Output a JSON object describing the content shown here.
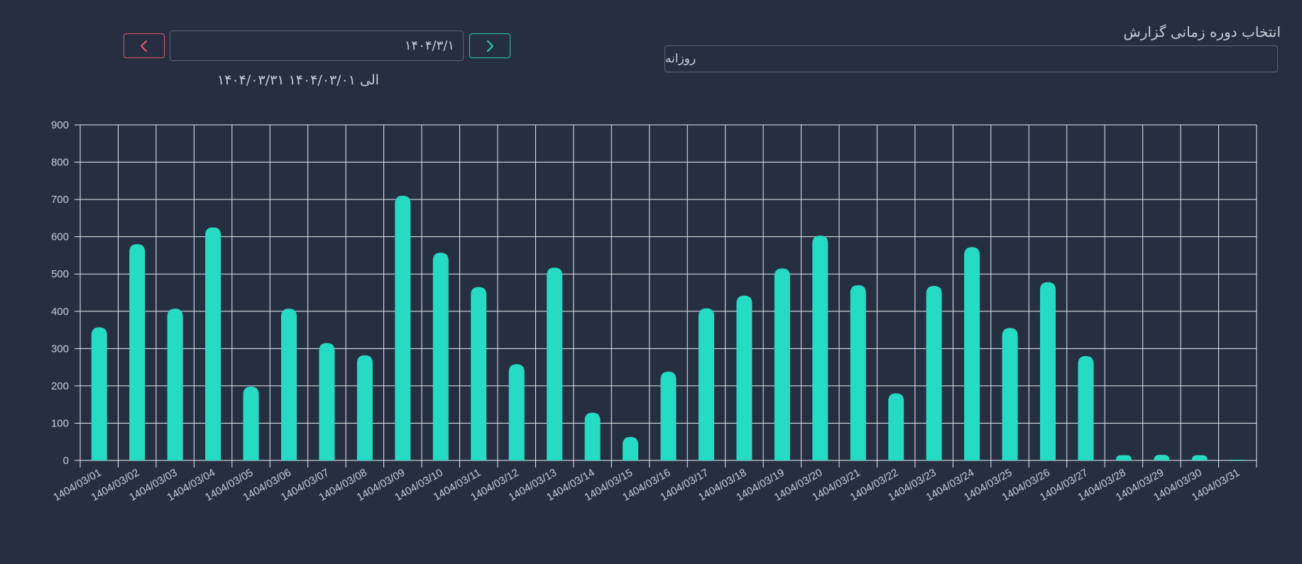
{
  "header": {
    "period_label": "انتخاب دوره زمانی گزارش",
    "period_value": "روزانه",
    "date_value": "۱۴۰۴/۳/۱",
    "range_text": "۱۴۰۴/۰۳/۳۱ الی ۱۴۰۴/۰۳/۰۱"
  },
  "icons": {
    "prev": "chevron-left-icon",
    "next": "chevron-right-icon"
  },
  "colors": {
    "bar": "#26dbc3",
    "grid": "#e8ebf0",
    "prev": "#e05563",
    "next": "#26c9a6",
    "background": "#262f42"
  },
  "chart_data": {
    "type": "bar",
    "categories": [
      "1404/03/01",
      "1404/03/02",
      "1404/03/03",
      "1404/03/04",
      "1404/03/05",
      "1404/03/06",
      "1404/03/07",
      "1404/03/08",
      "1404/03/09",
      "1404/03/10",
      "1404/03/11",
      "1404/03/12",
      "1404/03/13",
      "1404/03/14",
      "1404/03/15",
      "1404/03/16",
      "1404/03/17",
      "1404/03/18",
      "1404/03/19",
      "1404/03/20",
      "1404/03/21",
      "1404/03/22",
      "1404/03/23",
      "1404/03/24",
      "1404/03/25",
      "1404/03/26",
      "1404/03/27",
      "1404/03/28",
      "1404/03/29",
      "1404/03/30",
      "1404/03/31"
    ],
    "values": [
      357,
      580,
      407,
      625,
      198,
      407,
      315,
      282,
      710,
      557,
      465,
      258,
      517,
      128,
      63,
      238,
      408,
      442,
      515,
      603,
      470,
      180,
      468,
      572,
      355,
      478,
      280,
      14,
      15,
      14,
      2
    ],
    "ylim": [
      0,
      900
    ],
    "yticks": [
      "0",
      "100",
      "200",
      "300",
      "400",
      "500",
      "600",
      "700",
      "800",
      "900"
    ],
    "grid": true,
    "legend": "none"
  }
}
